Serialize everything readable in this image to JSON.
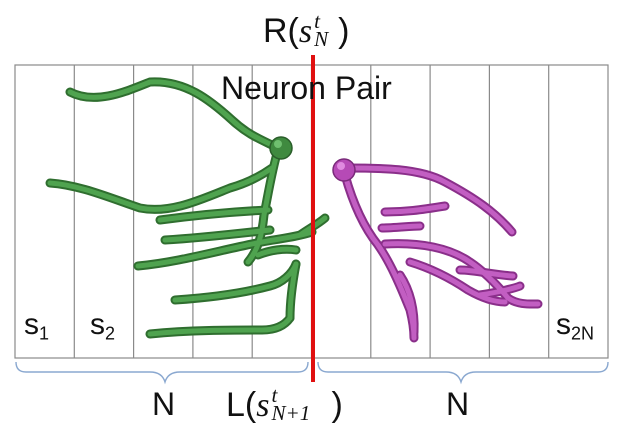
{
  "labels": {
    "right_top": {
      "prefix": "R(",
      "base": "s",
      "sup": "t",
      "sub": "N",
      "suffix": ")"
    },
    "left_bottom": {
      "prefix": "L(",
      "base": "s",
      "sup": "t",
      "sub": "N+1",
      "suffix": ")"
    },
    "title": "Neuron Pair",
    "segments": {
      "first": {
        "base": "s",
        "sub": "1"
      },
      "second": {
        "base": "s",
        "sub": "2"
      },
      "last": {
        "base": "s",
        "sub": "2N"
      }
    },
    "brace_left": "N",
    "brace_right": "N"
  },
  "segment_count": 10,
  "colors": {
    "left_neuron": "#3f8a3f",
    "right_neuron": "#b64ab6",
    "divider": "#e01010",
    "grid": "#8a8a8a",
    "brace": "#8aa8d0"
  }
}
